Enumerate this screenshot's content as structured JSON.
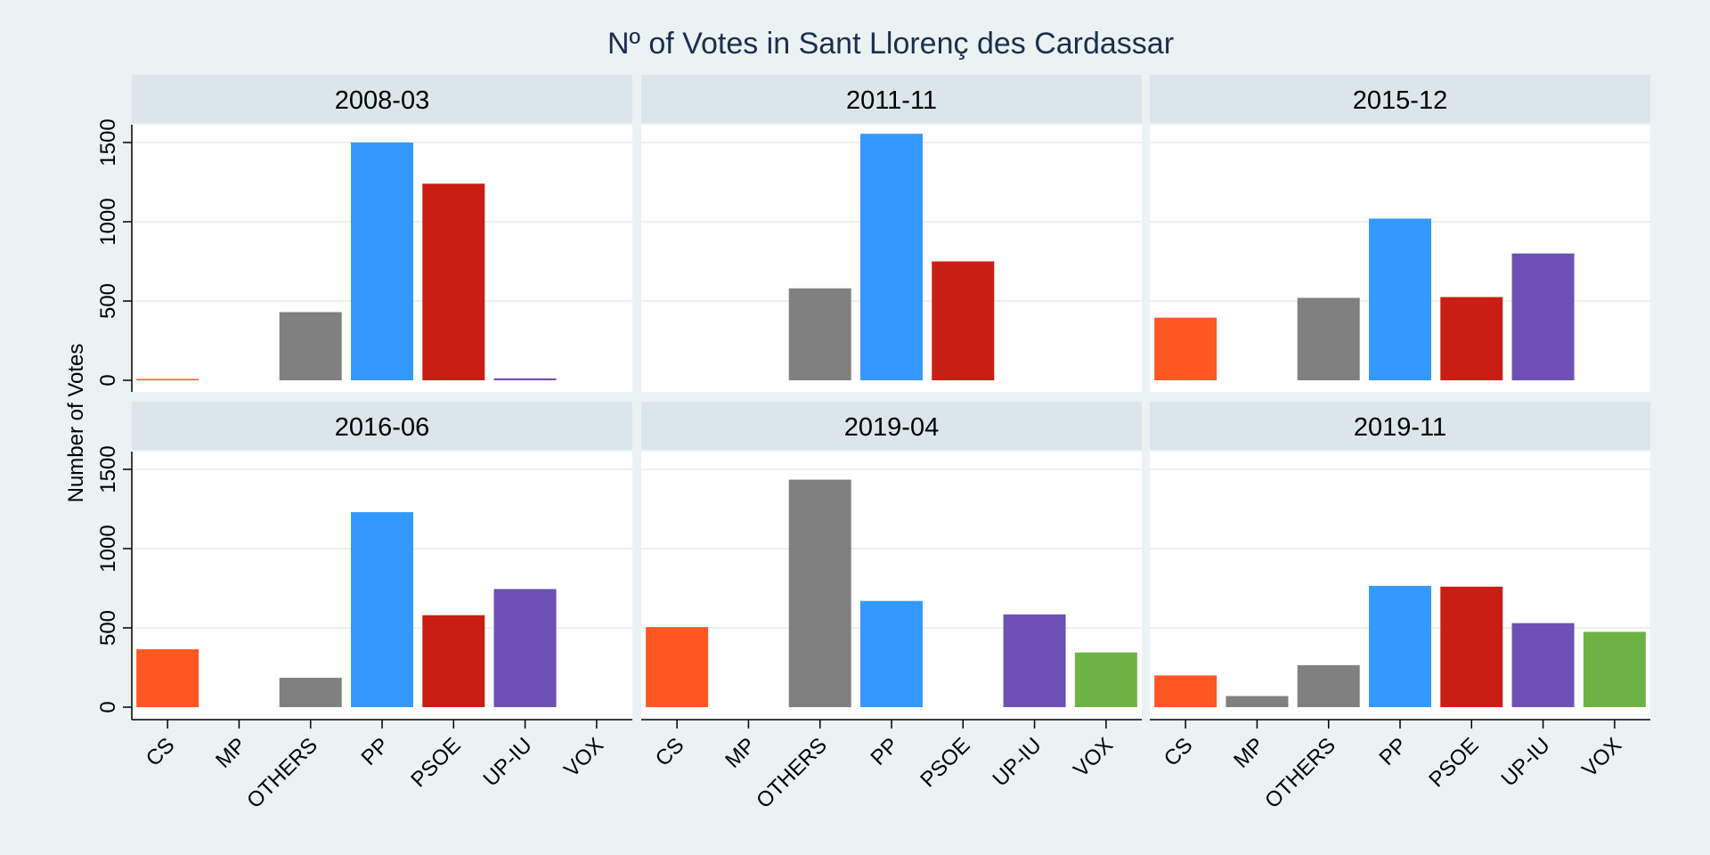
{
  "chart_data": {
    "type": "bar",
    "title": "Nº of Votes in Sant Llorenç des Cardassar",
    "ylabel": "Number of Votes",
    "xlabel": "",
    "categories": [
      "CS",
      "MP",
      "OTHERS",
      "PP",
      "PSOE",
      "UP-IU",
      "VOX"
    ],
    "colors": {
      "CS": "#ff5722",
      "MP": "#808080",
      "OTHERS": "#808080",
      "PP": "#3399ff",
      "PSOE": "#c81e14",
      "UP-IU": "#6d50b4",
      "VOX": "#6db344"
    },
    "ylim": [
      0,
      1650
    ],
    "yticks": [
      0,
      500,
      1000,
      1500
    ],
    "grid": true,
    "panels": [
      {
        "label": "2008-03",
        "values": [
          8,
          null,
          430,
          1500,
          1240,
          12,
          null
        ]
      },
      {
        "label": "2011-11",
        "values": [
          null,
          null,
          580,
          1555,
          750,
          null,
          null
        ]
      },
      {
        "label": "2015-12",
        "values": [
          395,
          null,
          520,
          1020,
          525,
          800,
          null
        ]
      },
      {
        "label": "2016-06",
        "values": [
          365,
          null,
          185,
          1230,
          580,
          745,
          null
        ]
      },
      {
        "label": "2019-04",
        "values": [
          505,
          null,
          1435,
          670,
          null,
          585,
          345
        ]
      },
      {
        "label": "2019-11",
        "values": [
          200,
          70,
          265,
          765,
          760,
          530,
          475
        ]
      }
    ]
  }
}
